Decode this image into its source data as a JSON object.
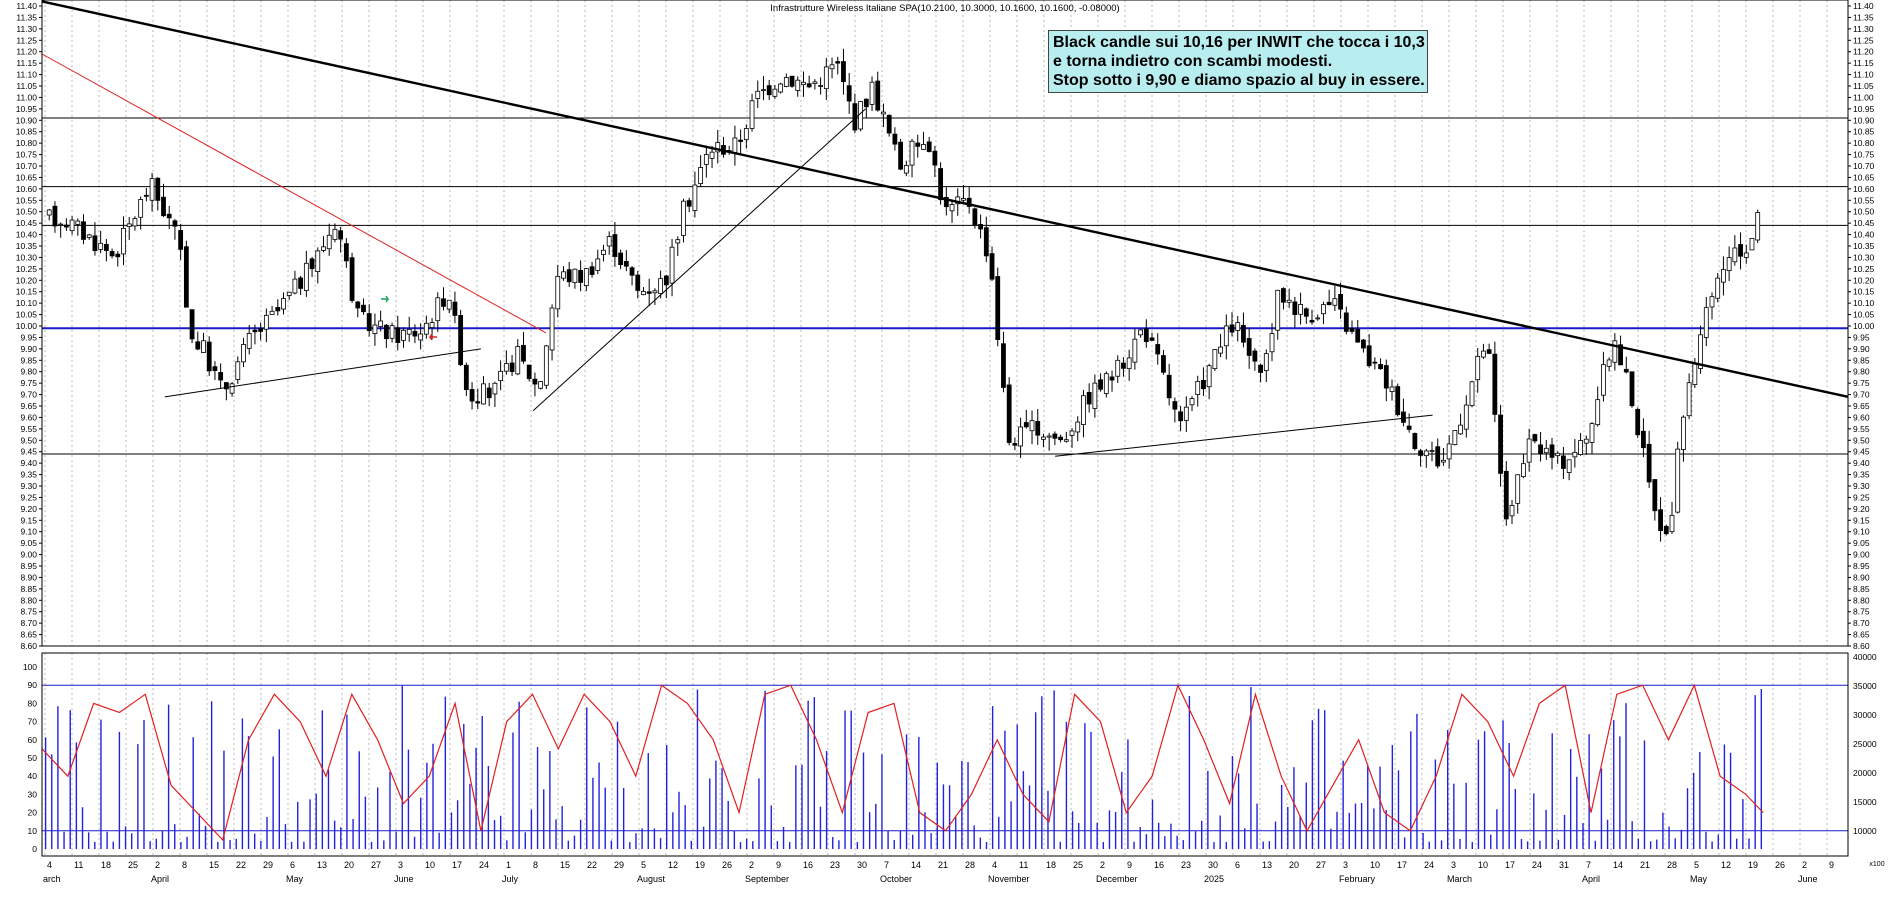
{
  "chart_data": {
    "type": "candlestick",
    "title": "Infrastrutture Wireless Italiane SPA(10.2100, 10.3000, 10.1600, 10.1600, -0.08000)",
    "price_axis": {
      "range": [
        8.6,
        11.4
      ],
      "labels": [
        "11.40",
        "11.35",
        "11.30",
        "11.25",
        "11.20",
        "11.15",
        "11.10",
        "11.05",
        "11.00",
        "10.95",
        "10.90",
        "10.85",
        "10.80",
        "10.75",
        "10.70",
        "10.65",
        "10.60",
        "10.55",
        "10.50",
        "10.45",
        "10.40",
        "10.35",
        "10.30",
        "10.25",
        "10.20",
        "10.15",
        "10.10",
        "10.05",
        "10.00",
        "9.95",
        "9.90",
        "9.85",
        "9.80",
        "9.75",
        "9.70",
        "9.65",
        "9.60",
        "9.55",
        "9.50",
        "9.45",
        "9.40",
        "9.35",
        "9.30",
        "9.25",
        "9.20",
        "9.15",
        "9.10",
        "9.05",
        "9.00",
        "8.95",
        "8.90",
        "8.85",
        "8.80",
        "8.75",
        "8.70",
        "8.65",
        "8.60"
      ]
    },
    "oscillator_axis": {
      "range": [
        0,
        100
      ],
      "labels": [
        "100",
        "90",
        "80",
        "70",
        "60",
        "50",
        "40",
        "30",
        "20",
        "10",
        "0"
      ]
    },
    "volume_axis": {
      "labels": [
        "40000",
        "35000",
        "30000",
        "25000",
        "20000",
        "15000",
        "10000"
      ],
      "range": [
        10000,
        40000
      ]
    },
    "x_day_labels": [
      "4",
      "11",
      "18",
      "25",
      "2",
      "8",
      "15",
      "22",
      "29",
      "6",
      "13",
      "20",
      "27",
      "3",
      "10",
      "17",
      "24",
      "1",
      "8",
      "15",
      "22",
      "29",
      "5",
      "12",
      "19",
      "26",
      "2",
      "9",
      "16",
      "23",
      "30",
      "7",
      "14",
      "21",
      "28",
      "4",
      "11",
      "18",
      "25",
      "2",
      "9",
      "16",
      "23",
      "30",
      "6",
      "13",
      "20",
      "27",
      "3",
      "10",
      "17",
      "24",
      "3",
      "10",
      "17",
      "24",
      "31",
      "7",
      "14",
      "21",
      "28",
      "5",
      "12",
      "19",
      "26",
      "2",
      "9"
    ],
    "x_month_labels": [
      "arch",
      "April",
      "May",
      "June",
      "July",
      "August",
      "September",
      "October",
      "November",
      "December",
      "2025",
      "February",
      "March",
      "April",
      "May",
      "June"
    ],
    "corner_label": "x100",
    "horizontal_levels": [
      10.91,
      10.61,
      10.44,
      9.99,
      9.44
    ],
    "support_level": 9.99,
    "oscillator_levels": [
      90,
      10
    ],
    "trendlines": [
      {
        "color": "#000000",
        "from": [
          0,
          11.42
        ],
        "to": [
          1,
          9.69
        ]
      },
      {
        "color": "#e02020",
        "from": [
          0,
          11.19
        ],
        "to": [
          0.279,
          9.97
        ]
      },
      {
        "color": "#000000",
        "from": [
          0.068,
          9.69
        ],
        "to": [
          0.243,
          9.9
        ]
      },
      {
        "color": "#000000",
        "from": [
          0.272,
          9.63
        ],
        "to": [
          0.456,
          10.95
        ]
      },
      {
        "color": "#000000",
        "from": [
          0.561,
          9.43
        ],
        "to": [
          0.77,
          9.61
        ]
      }
    ],
    "series": [
      {
        "name": "price",
        "points": [
          [
            0.012,
            10.47
          ],
          [
            0.04,
            10.31
          ],
          [
            0.06,
            10.62
          ],
          [
            0.075,
            10.39
          ],
          [
            0.083,
            9.95
          ],
          [
            0.09,
            9.89
          ],
          [
            0.1,
            9.71
          ],
          [
            0.115,
            9.94
          ],
          [
            0.13,
            10.06
          ],
          [
            0.15,
            10.27
          ],
          [
            0.163,
            10.47
          ],
          [
            0.175,
            10.03
          ],
          [
            0.195,
            9.96
          ],
          [
            0.21,
            9.98
          ],
          [
            0.225,
            10.16
          ],
          [
            0.236,
            9.7
          ],
          [
            0.25,
            9.71
          ],
          [
            0.263,
            9.88
          ],
          [
            0.275,
            9.72
          ],
          [
            0.285,
            10.22
          ],
          [
            0.3,
            10.22
          ],
          [
            0.315,
            10.38
          ],
          [
            0.33,
            10.15
          ],
          [
            0.345,
            10.2
          ],
          [
            0.355,
            10.5
          ],
          [
            0.37,
            10.78
          ],
          [
            0.385,
            10.79
          ],
          [
            0.395,
            11.0
          ],
          [
            0.41,
            11.1
          ],
          [
            0.425,
            11.05
          ],
          [
            0.44,
            11.15
          ],
          [
            0.45,
            10.9
          ],
          [
            0.46,
            11.05
          ],
          [
            0.475,
            10.7
          ],
          [
            0.49,
            10.85
          ],
          [
            0.5,
            10.5
          ],
          [
            0.513,
            10.55
          ],
          [
            0.525,
            10.3
          ],
          [
            0.535,
            9.5
          ],
          [
            0.55,
            9.55
          ],
          [
            0.565,
            9.5
          ],
          [
            0.58,
            9.7
          ],
          [
            0.595,
            9.8
          ],
          [
            0.61,
            10.0
          ],
          [
            0.62,
            9.8
          ],
          [
            0.63,
            9.55
          ],
          [
            0.645,
            9.8
          ],
          [
            0.66,
            10.02
          ],
          [
            0.675,
            9.75
          ],
          [
            0.685,
            10.15
          ],
          [
            0.7,
            10.05
          ],
          [
            0.715,
            10.1
          ],
          [
            0.73,
            9.9
          ],
          [
            0.745,
            9.75
          ],
          [
            0.76,
            9.5
          ],
          [
            0.775,
            9.4
          ],
          [
            0.785,
            9.6
          ],
          [
            0.8,
            9.95
          ],
          [
            0.81,
            9.15
          ],
          [
            0.825,
            9.5
          ],
          [
            0.84,
            9.4
          ],
          [
            0.855,
            9.5
          ],
          [
            0.87,
            9.95
          ],
          [
            0.88,
            9.7
          ],
          [
            0.89,
            9.3
          ],
          [
            0.9,
            9.05
          ],
          [
            0.91,
            9.7
          ],
          [
            0.92,
            10.0
          ],
          [
            0.93,
            10.25
          ],
          [
            0.945,
            10.35
          ],
          [
            0.955,
            10.65
          ],
          [
            0.97,
            10.72
          ],
          [
            0.985,
            10.4
          ],
          [
            0.995,
            10.15
          ],
          [
            1.0,
            10.16
          ]
        ]
      },
      {
        "name": "oscillator",
        "points": [
          [
            0,
            55
          ],
          [
            0.015,
            40
          ],
          [
            0.03,
            80
          ],
          [
            0.045,
            75
          ],
          [
            0.06,
            85
          ],
          [
            0.075,
            35
          ],
          [
            0.09,
            20
          ],
          [
            0.105,
            5
          ],
          [
            0.12,
            60
          ],
          [
            0.135,
            85
          ],
          [
            0.15,
            70
          ],
          [
            0.165,
            40
          ],
          [
            0.18,
            85
          ],
          [
            0.195,
            60
          ],
          [
            0.21,
            25
          ],
          [
            0.225,
            40
          ],
          [
            0.24,
            80
          ],
          [
            0.255,
            10
          ],
          [
            0.27,
            70
          ],
          [
            0.285,
            85
          ],
          [
            0.3,
            55
          ],
          [
            0.315,
            85
          ],
          [
            0.33,
            70
          ],
          [
            0.345,
            40
          ],
          [
            0.36,
            90
          ],
          [
            0.375,
            80
          ],
          [
            0.39,
            60
          ],
          [
            0.405,
            20
          ],
          [
            0.42,
            85
          ],
          [
            0.435,
            90
          ],
          [
            0.45,
            60
          ],
          [
            0.465,
            20
          ],
          [
            0.48,
            75
          ],
          [
            0.495,
            80
          ],
          [
            0.51,
            20
          ],
          [
            0.525,
            10
          ],
          [
            0.54,
            30
          ],
          [
            0.555,
            60
          ],
          [
            0.57,
            30
          ],
          [
            0.585,
            15
          ],
          [
            0.6,
            85
          ],
          [
            0.615,
            70
          ],
          [
            0.63,
            20
          ],
          [
            0.645,
            40
          ],
          [
            0.66,
            90
          ],
          [
            0.675,
            60
          ],
          [
            0.69,
            25
          ],
          [
            0.705,
            85
          ],
          [
            0.72,
            40
          ],
          [
            0.735,
            10
          ],
          [
            0.75,
            35
          ],
          [
            0.765,
            60
          ],
          [
            0.78,
            20
          ],
          [
            0.795,
            10
          ],
          [
            0.81,
            40
          ],
          [
            0.825,
            85
          ],
          [
            0.84,
            70
          ],
          [
            0.855,
            40
          ],
          [
            0.87,
            80
          ],
          [
            0.885,
            90
          ],
          [
            0.9,
            20
          ],
          [
            0.915,
            85
          ],
          [
            0.93,
            90
          ],
          [
            0.945,
            60
          ],
          [
            0.96,
            90
          ],
          [
            0.975,
            40
          ],
          [
            0.99,
            30
          ],
          [
            1.0,
            20
          ]
        ]
      }
    ]
  },
  "annotation": {
    "lines": [
      "Black candle sui 10,16 per INWIT che tocca i 10,3",
      "e torna indietro con scambi modesti.",
      "Stop sotto i 9,90 e diamo spazio al buy in essere."
    ]
  },
  "colors": {
    "trend_major": "#000000",
    "trend_red": "#e02020",
    "support": "#1a1acc",
    "oscillator": "#e02020",
    "volume": "#2222dd",
    "note_bg": "#b9eef0"
  }
}
